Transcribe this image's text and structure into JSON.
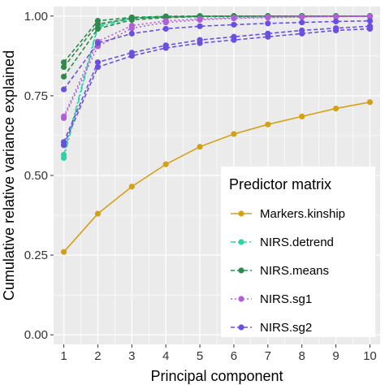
{
  "chart_data": {
    "type": "line",
    "title": "",
    "xlabel": "Principal component",
    "ylabel": "Cumulative relative variance explained",
    "x": [
      1,
      2,
      3,
      4,
      5,
      6,
      7,
      8,
      9,
      10
    ],
    "xlim": [
      0.7,
      10.3
    ],
    "ylim": [
      -0.03,
      1.03
    ],
    "xticks": [
      "1",
      "2",
      "3",
      "4",
      "5",
      "6",
      "7",
      "8",
      "9",
      "10"
    ],
    "yticks": [
      {
        "value": 0,
        "label": "0.00"
      },
      {
        "value": 0.25,
        "label": "0.25"
      },
      {
        "value": 0.5,
        "label": "0.50"
      },
      {
        "value": 0.75,
        "label": "0.75"
      },
      {
        "value": 1,
        "label": "1.00"
      }
    ],
    "grid": true,
    "legend_title": "Predictor matrix",
    "legend_position": "bottom-right inside",
    "series": [
      {
        "name": "Markers.kinship",
        "color": "#D4A017",
        "dash": "solid",
        "lines": [
          [
            0.26,
            0.38,
            0.465,
            0.535,
            0.59,
            0.63,
            0.66,
            0.685,
            0.71,
            0.73
          ]
        ]
      },
      {
        "name": "NIRS.detrend",
        "color": "#2BD4A4",
        "dash": "dashdot",
        "lines": [
          [
            0.555,
            0.965,
            0.993,
            0.998,
            0.999,
            1.0,
            1.0,
            1.0,
            1.0,
            1.0
          ],
          [
            0.565,
            0.97,
            0.995,
            0.999,
            1.0,
            1.0,
            1.0,
            1.0,
            1.0,
            1.0
          ]
        ]
      },
      {
        "name": "NIRS.means",
        "color": "#2E8B4E",
        "dash": "dashed",
        "lines": [
          [
            0.81,
            0.96,
            0.988,
            0.995,
            0.998,
            0.999,
            1.0,
            1.0,
            1.0,
            1.0
          ],
          [
            0.84,
            0.975,
            0.993,
            0.997,
            0.999,
            1.0,
            1.0,
            1.0,
            1.0,
            1.0
          ],
          [
            0.855,
            0.985,
            0.996,
            0.999,
            1.0,
            1.0,
            1.0,
            1.0,
            1.0,
            1.0
          ]
        ]
      },
      {
        "name": "NIRS.sg1",
        "color": "#B05FD9",
        "dash": "dotted",
        "lines": [
          [
            0.68,
            0.905,
            0.962,
            0.98,
            0.988,
            0.993,
            0.995,
            0.997,
            0.998,
            0.999
          ],
          [
            0.685,
            0.92,
            0.97,
            0.985,
            0.991,
            0.995,
            0.997,
            0.998,
            0.999,
            0.999
          ]
        ]
      },
      {
        "name": "NIRS.sg2",
        "color": "#6A4FE0",
        "dash": "dashed",
        "lines": [
          [
            0.595,
            0.84,
            0.875,
            0.9,
            0.915,
            0.925,
            0.935,
            0.945,
            0.955,
            0.96
          ],
          [
            0.605,
            0.855,
            0.885,
            0.908,
            0.925,
            0.935,
            0.945,
            0.955,
            0.962,
            0.968
          ],
          [
            0.77,
            0.915,
            0.945,
            0.96,
            0.968,
            0.973,
            0.977,
            0.98,
            0.983,
            0.985
          ]
        ]
      }
    ]
  }
}
